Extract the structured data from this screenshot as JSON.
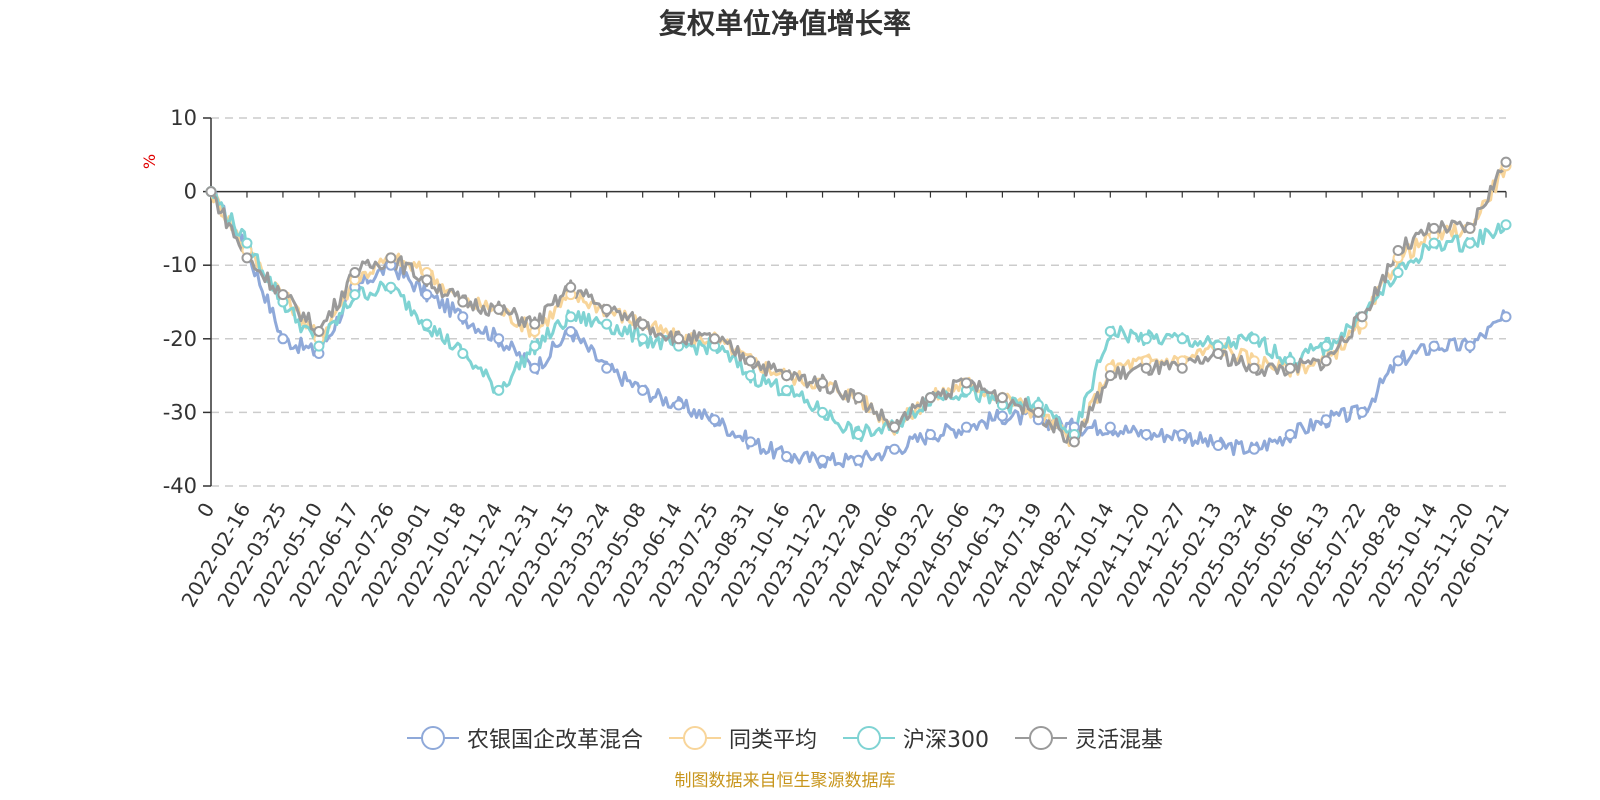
{
  "chart_data": {
    "type": "line",
    "title": "复权单位净值增长率",
    "ylabel": "%",
    "ylim": [
      -40,
      10
    ],
    "yticks": [
      10,
      0,
      -10,
      -20,
      -30,
      -40
    ],
    "categories": [
      "0",
      "2022-02-16",
      "2022-03-25",
      "2022-05-10",
      "2022-06-17",
      "2022-07-26",
      "2022-09-01",
      "2022-10-18",
      "2022-11-24",
      "2022-12-31",
      "2023-02-15",
      "2023-03-24",
      "2023-05-08",
      "2023-06-14",
      "2023-07-25",
      "2023-08-31",
      "2023-10-16",
      "2023-11-22",
      "2023-12-29",
      "2024-02-06",
      "2024-03-22",
      "2024-05-06",
      "2024-06-13",
      "2024-07-19",
      "2024-08-27",
      "2024-10-14",
      "2024-11-20",
      "2024-12-27",
      "2025-02-13",
      "2025-03-24",
      "2025-05-06",
      "2025-06-13",
      "2025-07-22",
      "2025-08-28",
      "2025-10-14",
      "2025-11-20",
      "2026-01-21"
    ],
    "series": [
      {
        "name": "农银国企改革混合",
        "color": "#8fa9d9",
        "values": [
          0,
          -8,
          -20,
          -22,
          -13,
          -10,
          -14,
          -17,
          -20,
          -24,
          -19,
          -24,
          -27,
          -29,
          -31,
          -34,
          -36,
          -36.5,
          -36.5,
          -35,
          -33,
          -32,
          -30.5,
          -31,
          -32,
          -32,
          -33,
          -33,
          -34.5,
          -35,
          -33,
          -31,
          -30,
          -23,
          -21,
          -21,
          -17
        ]
      },
      {
        "name": "同类平均",
        "color": "#f8d59a",
        "values": [
          0,
          -8,
          -14,
          -20,
          -12,
          -9,
          -11,
          -15,
          -16,
          -19,
          -14,
          -16,
          -18,
          -20,
          -20,
          -23,
          -25,
          -26,
          -28,
          -32,
          -28,
          -26,
          -28,
          -30,
          -34,
          -24,
          -23,
          -23,
          -21,
          -23,
          -24,
          -23,
          -18,
          -9,
          -6,
          -5,
          3.5
        ]
      },
      {
        "name": "沪深300",
        "color": "#7fd3d3",
        "values": [
          0,
          -7,
          -15,
          -21,
          -14,
          -13,
          -18,
          -22,
          -27,
          -21,
          -17,
          -18,
          -20,
          -21,
          -21,
          -25,
          -27,
          -30,
          -33,
          -32,
          -28,
          -27,
          -29,
          -29,
          -33,
          -19,
          -20,
          -20,
          -21,
          -20,
          -23,
          -21,
          -17,
          -11,
          -7,
          -7,
          -4.5
        ]
      },
      {
        "name": "灵活混基",
        "color": "#9a9a9a",
        "values": [
          0,
          -9,
          -14,
          -19,
          -11,
          -9,
          -12,
          -15,
          -16,
          -18,
          -13,
          -16,
          -18,
          -20,
          -20,
          -23,
          -25,
          -26,
          -28,
          -32,
          -28,
          -26,
          -28,
          -30,
          -34,
          -25,
          -24,
          -24,
          -22,
          -24,
          -24,
          -23,
          -17,
          -8,
          -5,
          -5,
          4
        ]
      }
    ],
    "legend_position": "bottom",
    "grid": true
  },
  "source_text": "制图数据来自恒生聚源数据库"
}
